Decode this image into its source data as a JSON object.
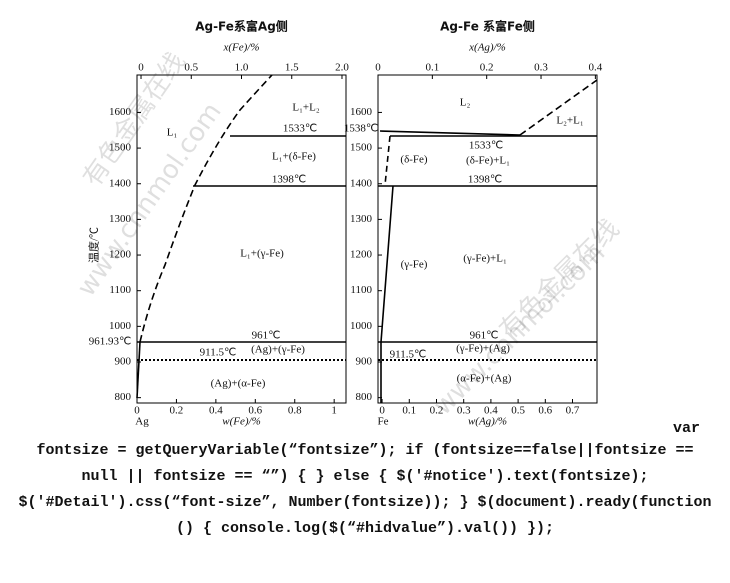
{
  "chart_data": [
    {
      "type": "phase-diagram",
      "title": "Ag-Fe系富Ag侧",
      "x_label": "w(Fe)/%",
      "x2_label": "x(Fe)/%",
      "y_label": "温度/℃",
      "xlim": [
        0,
        1.06
      ],
      "xticks": [
        0,
        0.2,
        0.4,
        0.6,
        0.8,
        1.0
      ],
      "x2lim": [
        -0.04,
        2.04
      ],
      "x2ticks": [
        0,
        0.5,
        {
          "value": 1.0,
          "label": "1.0"
        },
        1.5,
        {
          "value": 2.0,
          "label": "2.0"
        }
      ],
      "ylim": [
        785,
        1705
      ],
      "yticks": [
        800,
        900,
        1000,
        1100,
        1200,
        1300,
        1400,
        1500,
        1600
      ],
      "annotations": [
        "L₁",
        "L₁+L₂",
        "L₁+(δ-Fe)",
        "1533℃",
        "1398℃",
        "L₁+(γ-Fe)",
        "961℃",
        "(Ag)+(γ-Fe)",
        "911.5℃",
        "(Ag)+(α-Fe)",
        "961.93℃",
        "Ag"
      ]
    },
    {
      "type": "phase-diagram",
      "title": "Ag-Fe 系富Fe侧",
      "x_label": "w(Ag)/%",
      "x2_label": "x(Ag)/%",
      "xlim": [
        -0.015,
        0.79
      ],
      "xticks": [
        0,
        0.1,
        0.2,
        0.3,
        0.4,
        0.5,
        0.6,
        0.7
      ],
      "x2lim": [
        0,
        0.403
      ],
      "x2ticks": [
        0,
        0.1,
        0.2,
        0.3,
        0.4
      ],
      "ylim": [
        785,
        1705
      ],
      "yticks": [
        800,
        900,
        1000,
        1100,
        1200,
        1300,
        1400,
        1500,
        1600
      ],
      "annotations": [
        "L₂",
        "L₂+L₁",
        "1538℃",
        "1533℃",
        "(δ-Fe)",
        "(δ-Fe)+L₁",
        "1398℃",
        "(γ-Fe)",
        "(γ-Fe)+L₁",
        "961℃",
        "(γ-Fe)+(Ag)",
        "911.5℃",
        "(α-Fe)+(Ag)",
        "Fe"
      ]
    }
  ],
  "watermarks": [
    "有色金属在线",
    "www.cnnmol.com",
    "有色金属在线",
    "www.cnnmol.com"
  ],
  "code_text": [
    "var",
    "fontsize = getQueryVariable(“fontsize”); if (fontsize==false||fontsize ==",
    "null || fontsize == “”) { } else { $('#notice').text(fontsize);",
    "$('#Detail').css(“font-size”, Number(fontsize)); } $(document).ready(function",
    "() { console.log($(“#hidvalue”).val()) });"
  ]
}
